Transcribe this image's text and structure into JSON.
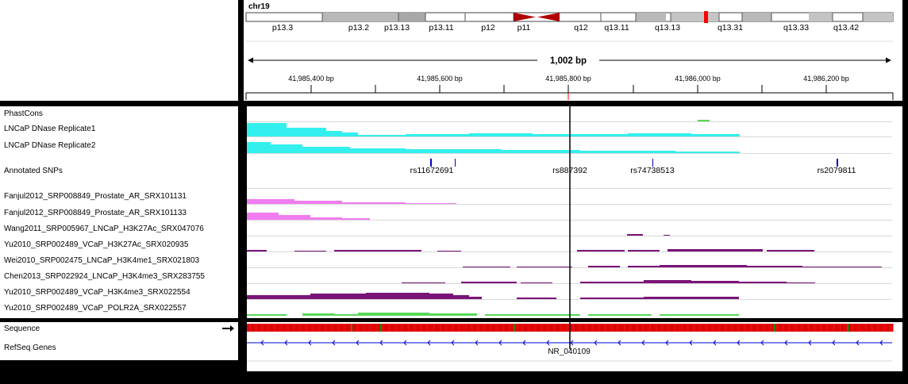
{
  "header": {
    "chromosome": "chr19",
    "span_label": "1,002 bp",
    "ruler_ticks": [
      "41,985,400 bp",
      "41,985,600 bp",
      "41,985,800 bp",
      "41,986,000 bp",
      "41,986,200 bp"
    ],
    "ideogram_bands": [
      "p13.3",
      "p13.2",
      "p13.13",
      "p13.11",
      "p12",
      "p11",
      "q12",
      "q13.11",
      "q13.13",
      "q13.31",
      "q13.33",
      "q13.42"
    ]
  },
  "tracks": {
    "phastcons": "PhastCons",
    "dnase1": "LNCaP DNase Replicate1",
    "dnase2": "LNCaP DNase Replicate2",
    "snps": "Annotated SNPs",
    "t1": "Fanjul2012_SRP008849_Prostate_AR_SRX101131",
    "t2": "Fanjul2012_SRP008849_Prostate_AR_SRX101133",
    "t3": "Wang2011_SRP005967_LNCaP_H3K27Ac_SRX047076",
    "t4": "Yu2010_SRP002489_VCaP_H3K27Ac_SRX020935",
    "t5": "Wei2010_SRP002475_LNCaP_H3K4me1_SRX021803",
    "t6": "Chen2013_SRP022924_LNCaP_H3K4me3_SRX283755",
    "t7": "Yu2010_SRP002489_VCaP_H3K4me3_SRX022554",
    "t8": "Yu2010_SRP002489_VCaP_POLR2A_SRX022557",
    "sequence": "Sequence",
    "refseq": "RefSeq Genes"
  },
  "snp_ids": [
    "rs11672691",
    "rs887392",
    "rs74738513",
    "rs2079811"
  ],
  "gene_name": "NR_040109",
  "colors": {
    "dnase": "#33f0ee",
    "ar": "#f07cf0",
    "histone": "#7a1478",
    "polr2a": "#58d858",
    "ideogram_centromere": "#b00000",
    "ideogram_marker": "#ff0000",
    "gene": "#0000dd"
  }
}
